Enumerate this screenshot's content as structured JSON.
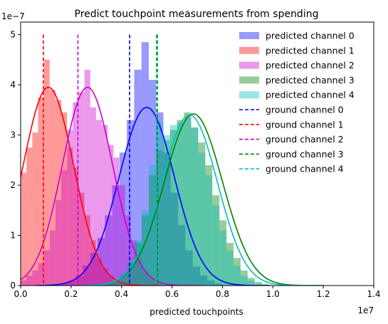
{
  "chart_data": {
    "type": "histogram+kde",
    "title": "Predict touchpoint measurements from spending",
    "xlabel": "predicted touchpoints",
    "ylabel": "",
    "x_exponent_label": "1e7",
    "y_exponent_label": "1e−7",
    "xlim": [
      0,
      14000000
    ],
    "ylim": [
      0,
      5.25e-07
    ],
    "x_ticks": [
      0,
      2000000,
      4000000,
      6000000,
      8000000,
      10000000,
      12000000,
      14000000
    ],
    "x_tick_labels": [
      "0.0",
      "0.2",
      "0.4",
      "0.6",
      "0.8",
      "1.0",
      "1.2",
      "1.4"
    ],
    "y_ticks": [
      0,
      1e-07,
      2e-07,
      3e-07,
      4e-07,
      5e-07
    ],
    "y_tick_labels": [
      "0",
      "1",
      "2",
      "3",
      "4",
      "5"
    ],
    "legend_position": "top-right",
    "grid": false,
    "series": [
      {
        "name": "predicted channel 0",
        "color": "#0000ff",
        "mean": 5000000,
        "sd": 1100000,
        "ground_name": "ground channel 0",
        "ground_color": "#0000cc",
        "ground_x": 4320000,
        "hist_start": 1600000,
        "bin_width": 290000,
        "hist": [
          0.04,
          0.1,
          0.2,
          0.4,
          0.65,
          0.95,
          1.4,
          2.0,
          2.65,
          3.3,
          4.3,
          4.85,
          4.1,
          3.45,
          2.65,
          1.85,
          1.2,
          0.7,
          0.38,
          0.2,
          0.1,
          0.04
        ],
        "kde_peak": 3.55
      },
      {
        "name": "predicted channel 1",
        "color": "#ff0000",
        "mean": 1100000,
        "sd": 1000000,
        "ground_name": "ground channel 1",
        "ground_color": "#ff0000",
        "ground_x": 900000,
        "hist_start": 0,
        "bin_width": 230000,
        "hist": [
          2.25,
          2.75,
          3.05,
          3.75,
          4.5,
          3.9,
          3.7,
          3.45,
          2.75,
          2.35,
          1.85,
          1.4,
          0.9,
          0.55,
          0.35,
          0.2,
          0.1,
          0.05
        ],
        "kde_peak": 3.95
      },
      {
        "name": "predicted channel 2",
        "color": "#cc00cc",
        "mean": 2650000,
        "sd": 1000000,
        "ground_name": "ground channel 2",
        "ground_color": "#cc00cc",
        "ground_x": 2270000,
        "hist_start": 0,
        "bin_width": 230000,
        "hist": [
          0.1,
          0.2,
          0.3,
          0.45,
          0.7,
          1.1,
          1.7,
          2.3,
          3.1,
          3.65,
          3.85,
          4.3,
          3.55,
          3.3,
          3.2,
          2.8,
          2.55,
          2.0,
          1.4,
          0.9,
          0.55,
          0.3,
          0.15,
          0.06
        ],
        "kde_peak": 3.95
      },
      {
        "name": "predicted channel 3",
        "color": "#008000",
        "mean": 6850000,
        "sd": 1150000,
        "ground_name": "ground channel 3",
        "ground_color": "#008000",
        "ground_x": 5420000,
        "hist_start": 3400000,
        "bin_width": 280000,
        "hist": [
          0.04,
          0.1,
          0.22,
          0.45,
          0.85,
          1.4,
          2.2,
          2.7,
          2.9,
          3.1,
          3.3,
          3.45,
          3.15,
          2.85,
          2.4,
          1.8,
          1.3,
          0.85,
          0.55,
          0.3,
          0.15,
          0.07,
          0.03
        ],
        "kde_peak": 3.42
      },
      {
        "name": "predicted channel 4",
        "color": "#00bfbf",
        "mean": 6700000,
        "sd": 1100000,
        "ground_name": "ground channel 4",
        "ground_color": "#00bfbf",
        "ground_x": 5380000,
        "hist_start": 3400000,
        "bin_width": 280000,
        "hist": [
          0.05,
          0.12,
          0.25,
          0.5,
          0.9,
          1.5,
          2.4,
          3.25,
          3.0,
          3.2,
          3.25,
          3.35,
          3.15,
          2.65,
          2.2,
          1.6,
          1.1,
          0.7,
          0.4,
          0.2,
          0.1,
          0.04
        ],
        "kde_peak": 3.4
      }
    ]
  }
}
